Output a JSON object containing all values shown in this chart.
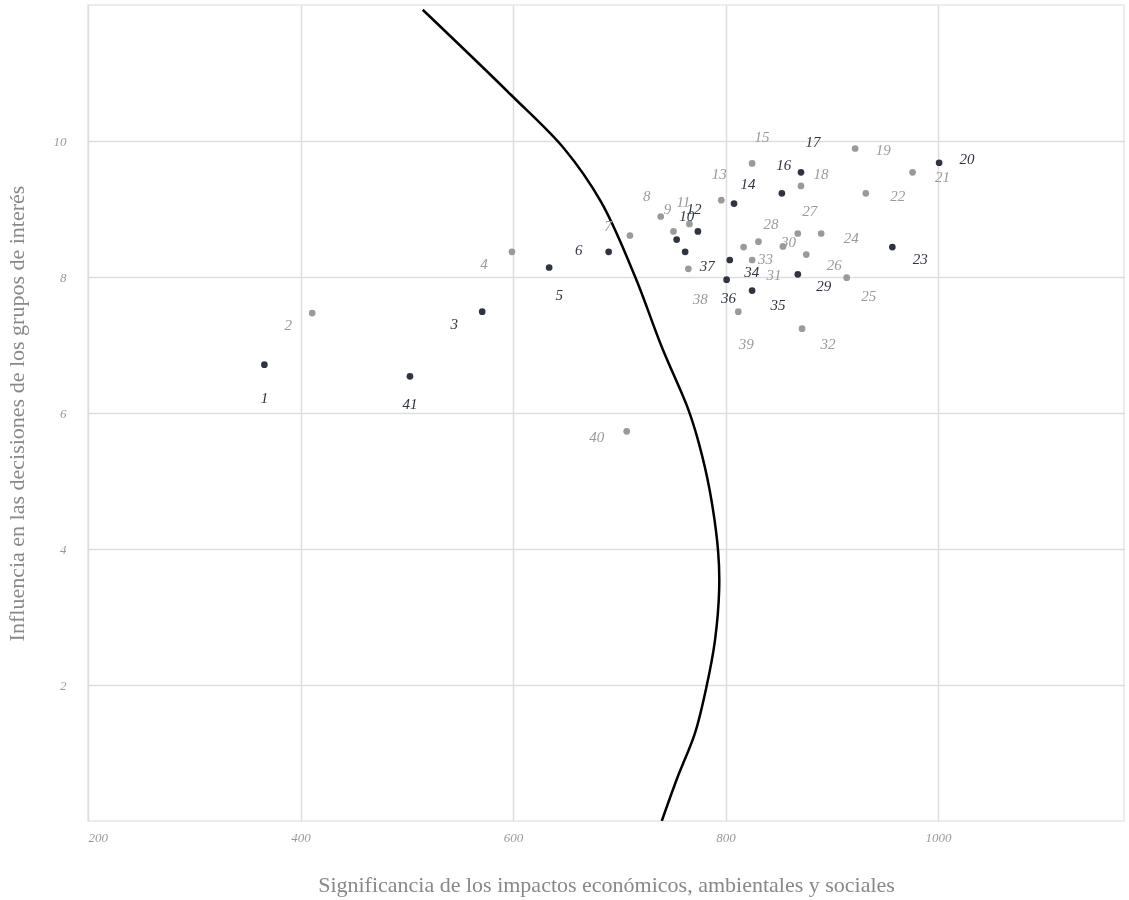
{
  "chart_data": {
    "type": "scatter",
    "xlabel": "Significancia de los impactos económicos, ambientales y sociales",
    "ylabel": "Influencia en las decisiones de los  grupos de interés",
    "xlim": [
      200,
      1175
    ],
    "ylim": [
      0,
      12
    ],
    "xticks": [
      200,
      400,
      600,
      800,
      1000
    ],
    "yticks": [
      2,
      4,
      6,
      8,
      10
    ],
    "grid": true,
    "marker": "circle",
    "series": [
      {
        "color": "#2f3540",
        "x": [
          366,
          571,
          634,
          690,
          754,
          774,
          808,
          853,
          871,
          1001,
          957,
          868,
          804,
          825,
          801,
          762,
          503
        ],
        "values": [
          6.71,
          7.49,
          8.14,
          8.37,
          8.55,
          8.67,
          9.08,
          9.23,
          9.54,
          9.68,
          8.44,
          8.04,
          8.25,
          7.8,
          7.96,
          8.37,
          6.54
        ]
      },
      {
        "color": "#9a9a9a",
        "x": [
          411,
          599,
          710,
          739,
          751,
          766,
          796,
          825,
          871,
          922,
          976,
          932,
          890,
          914,
          876,
          868,
          854,
          831,
          825,
          872,
          817,
          765,
          812,
          707
        ],
        "values": [
          7.47,
          8.37,
          8.61,
          8.89,
          8.67,
          8.78,
          9.13,
          9.67,
          9.34,
          9.89,
          9.54,
          9.23,
          8.64,
          7.99,
          8.33,
          8.64,
          8.45,
          8.52,
          8.25,
          7.24,
          8.44,
          8.12,
          7.49,
          5.73
        ]
      },
      {
        "type": "line",
        "color": "#000000",
        "marker": "none",
        "x": [
          515,
          598,
          648,
          683,
          715,
          740,
          765,
          775,
          785,
          793,
          794,
          790,
          782,
          771,
          755,
          740
        ],
        "values": [
          11.93,
          10.68,
          9.89,
          9.1,
          8.0,
          6.97,
          6.05,
          5.55,
          4.87,
          3.97,
          3.4,
          2.65,
          1.97,
          1.28,
          0.65,
          0
        ]
      }
    ],
    "annotations": [
      {
        "text": "1",
        "x": 366,
        "y": 6.71
      },
      {
        "text": "2",
        "x": 411,
        "y": 7.47
      },
      {
        "text": "3",
        "x": 571,
        "y": 7.49
      },
      {
        "text": "4",
        "x": 599,
        "y": 8.37
      },
      {
        "text": "5",
        "x": 634,
        "y": 8.14
      },
      {
        "text": "6",
        "x": 690,
        "y": 8.37
      },
      {
        "text": "7",
        "x": 710,
        "y": 8.61
      },
      {
        "text": "8",
        "x": 739,
        "y": 8.89
      },
      {
        "text": "9",
        "x": 751,
        "y": 8.67
      },
      {
        "text": "10",
        "x": 754,
        "y": 8.55
      },
      {
        "text": "11",
        "x": 766,
        "y": 8.78
      },
      {
        "text": "12",
        "x": 774,
        "y": 8.67
      },
      {
        "text": "13",
        "x": 796,
        "y": 9.13
      },
      {
        "text": "14",
        "x": 808,
        "y": 9.08
      },
      {
        "text": "15",
        "x": 825,
        "y": 9.67
      },
      {
        "text": "16",
        "x": 853,
        "y": 9.23
      },
      {
        "text": "17",
        "x": 871,
        "y": 9.54
      },
      {
        "text": "18",
        "x": 871,
        "y": 9.34
      },
      {
        "text": "19",
        "x": 922,
        "y": 9.89
      },
      {
        "text": "20",
        "x": 1001,
        "y": 9.68
      },
      {
        "text": "21",
        "x": 976,
        "y": 9.54
      },
      {
        "text": "22",
        "x": 932,
        "y": 9.23
      },
      {
        "text": "23",
        "x": 957,
        "y": 8.44
      },
      {
        "text": "24",
        "x": 890,
        "y": 8.64
      },
      {
        "text": "25",
        "x": 914,
        "y": 7.99
      },
      {
        "text": "26",
        "x": 876,
        "y": 8.33
      },
      {
        "text": "27",
        "x": 868,
        "y": 8.64
      },
      {
        "text": "28",
        "x": 854,
        "y": 8.45
      },
      {
        "text": "29",
        "x": 868,
        "y": 8.04
      },
      {
        "text": "30",
        "x": 831,
        "y": 8.52
      },
      {
        "text": "31",
        "x": 825,
        "y": 8.25
      },
      {
        "text": "32",
        "x": 872,
        "y": 7.24
      },
      {
        "text": "33",
        "x": 817,
        "y": 8.44
      },
      {
        "text": "34",
        "x": 804,
        "y": 8.25
      },
      {
        "text": "35",
        "x": 825,
        "y": 7.8
      },
      {
        "text": "36",
        "x": 801,
        "y": 7.96
      },
      {
        "text": "37",
        "x": 762,
        "y": 8.37
      },
      {
        "text": "38",
        "x": 765,
        "y": 8.12
      },
      {
        "text": "39",
        "x": 812,
        "y": 7.49
      },
      {
        "text": "40",
        "x": 707,
        "y": 5.73
      },
      {
        "text": "41",
        "x": 503,
        "y": 6.54
      }
    ]
  }
}
